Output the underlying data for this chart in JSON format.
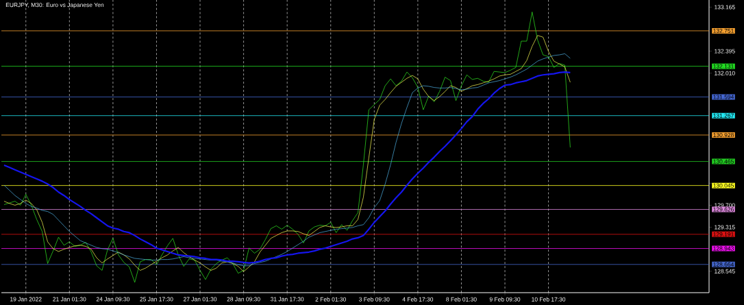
{
  "chart_data": {
    "type": "line",
    "title": "EURJPY, M30:  Euro vs Japanese Yen",
    "categories": [
      null,
      null,
      null,
      null,
      "19 Jan 2022",
      null,
      null,
      null,
      null,
      null,
      null,
      null,
      "21 Jan 01:30",
      null,
      null,
      null,
      null,
      null,
      null,
      null,
      "24 Jan 09:30",
      null,
      null,
      null,
      null,
      null,
      null,
      null,
      "25 Jan 17:30",
      null,
      null,
      null,
      null,
      null,
      null,
      null,
      "27 Jan 01:30",
      null,
      null,
      null,
      null,
      null,
      null,
      null,
      "28 Jan 09:30",
      null,
      null,
      null,
      null,
      null,
      null,
      null,
      "31 Jan 17:30",
      null,
      null,
      null,
      null,
      null,
      null,
      null,
      "2 Feb 01:30",
      null,
      null,
      null,
      null,
      null,
      null,
      null,
      "3 Feb 09:30",
      null,
      null,
      null,
      null,
      null,
      null,
      null,
      "4 Feb 17:30",
      null,
      null,
      null,
      null,
      null,
      null,
      null,
      "8 Feb 01:30",
      null,
      null,
      null,
      null,
      null,
      null,
      null,
      "9 Feb 09:30",
      null,
      null,
      null,
      null,
      null,
      null,
      null,
      "10 Feb 17:30",
      null,
      null,
      null,
      null,
      null,
      null,
      null,
      null,
      null,
      null,
      null,
      null,
      null,
      null,
      null,
      null,
      null,
      null,
      null,
      null,
      null,
      null,
      null,
      null,
      null,
      null,
      null,
      null,
      null
    ],
    "ylim": [
      128.17,
      133.29
    ],
    "yticks": [
      133.165,
      132.395,
      {
        "value": 132.01,
        "label": "132.010"
      },
      {
        "value": 130.855,
        "label": null
      },
      {
        "value": 130.085,
        "label": null
      },
      {
        "value": 129.7,
        "label": "129.700"
      },
      129.315,
      128.545
    ],
    "grid": "x",
    "marker": "none",
    "line_style": "solid",
    "series": [
      {
        "color": "#33ee22",
        "values": [
          129.71,
          129.74,
          129.77,
          129.7,
          129.89,
          129.7,
          129.45,
          129.24,
          128.68,
          128.9,
          129.14,
          129.0,
          129.06,
          128.98,
          129.0,
          129.05,
          128.88,
          128.64,
          128.56,
          128.92,
          129.12,
          128.83,
          128.7,
          128.62,
          128.35,
          128.71,
          128.75,
          128.75,
          128.66,
          128.83,
          128.99,
          129.12,
          128.83,
          128.63,
          128.76,
          128.74,
          128.56,
          128.4,
          128.58,
          128.68,
          128.74,
          128.78,
          128.68,
          128.51,
          128.56,
          128.95,
          128.86,
          128.93,
          129.1,
          129.29,
          129.34,
          129.28,
          129.35,
          129.28,
          129.19,
          129.04,
          129.25,
          129.32,
          129.35,
          129.34,
          129.4,
          129.22,
          129.36,
          129.26,
          129.43,
          129.57,
          130.41,
          131.37,
          131.46,
          131.55,
          131.79,
          131.91,
          131.79,
          131.87,
          132.03,
          131.93,
          131.76,
          131.37,
          131.61,
          131.51,
          131.69,
          131.94,
          131.88,
          131.53,
          131.79,
          131.98,
          131.9,
          131.92,
          131.87,
          131.85,
          132.04,
          132.03,
          132.02,
          132.06,
          132.11,
          132.57,
          132.57,
          133.08,
          132.59,
          132.33,
          132.3,
          132.11,
          132.18,
          132.15,
          130.71,
          null,
          null,
          null,
          null,
          null,
          null,
          null,
          null,
          null,
          null,
          null,
          null,
          null,
          null,
          null,
          null,
          null,
          null,
          null,
          null,
          null,
          null,
          null,
          null,
          null
        ]
      },
      {
        "color": "#ffff55",
        "values": [
          129.77,
          129.73,
          129.7,
          129.73,
          129.79,
          129.73,
          129.62,
          129.4,
          129.06,
          128.94,
          128.89,
          128.93,
          128.96,
          128.99,
          129.0,
          128.98,
          128.93,
          128.78,
          128.69,
          128.76,
          128.82,
          128.88,
          128.83,
          128.76,
          128.65,
          128.56,
          128.6,
          128.66,
          128.72,
          128.78,
          128.83,
          128.9,
          128.96,
          128.87,
          128.8,
          128.74,
          128.69,
          128.62,
          128.56,
          128.6,
          128.69,
          128.71,
          128.68,
          128.63,
          128.54,
          128.62,
          128.71,
          128.88,
          129.0,
          129.12,
          129.17,
          129.22,
          129.25,
          129.25,
          129.24,
          129.2,
          129.17,
          129.24,
          129.31,
          129.34,
          129.32,
          129.31,
          129.32,
          129.34,
          129.34,
          129.45,
          129.84,
          130.53,
          131.2,
          131.45,
          131.55,
          131.67,
          131.78,
          131.85,
          131.92,
          131.97,
          131.91,
          131.73,
          131.6,
          131.53,
          131.6,
          131.69,
          131.79,
          131.76,
          131.69,
          131.74,
          131.79,
          131.81,
          131.84,
          131.87,
          131.91,
          131.96,
          131.98,
          131.99,
          132.04,
          132.09,
          132.23,
          132.48,
          132.67,
          132.64,
          132.39,
          132.22,
          132.17,
          132.12,
          131.85,
          null,
          null,
          null,
          null,
          null,
          null,
          null,
          null,
          null,
          null,
          null,
          null,
          null,
          null,
          null,
          null,
          null,
          null,
          null,
          null,
          null,
          null,
          null,
          null,
          null
        ]
      },
      {
        "color": "#4fb3e6",
        "values": [
          130.05,
          129.96,
          129.87,
          129.8,
          129.73,
          129.68,
          129.65,
          129.61,
          129.59,
          129.54,
          129.44,
          129.34,
          129.24,
          129.16,
          129.08,
          129.04,
          129.0,
          128.96,
          128.94,
          128.93,
          128.9,
          128.87,
          128.83,
          128.8,
          128.77,
          128.76,
          128.75,
          128.74,
          128.74,
          128.75,
          128.75,
          128.76,
          128.78,
          128.8,
          128.78,
          128.77,
          128.76,
          128.75,
          128.74,
          128.74,
          128.72,
          128.71,
          128.69,
          128.66,
          128.64,
          128.64,
          128.68,
          128.7,
          128.72,
          128.76,
          128.8,
          128.84,
          128.89,
          128.95,
          129.01,
          129.07,
          129.14,
          129.18,
          129.22,
          129.24,
          129.26,
          129.28,
          129.29,
          129.3,
          129.31,
          129.34,
          129.36,
          129.48,
          129.66,
          129.78,
          130.07,
          130.41,
          130.8,
          131.13,
          131.41,
          131.67,
          131.75,
          131.79,
          131.78,
          131.76,
          131.75,
          131.75,
          131.76,
          131.74,
          131.72,
          131.73,
          131.75,
          131.76,
          131.8,
          131.84,
          131.86,
          131.88,
          131.91,
          131.94,
          131.98,
          132.03,
          132.08,
          132.15,
          132.22,
          132.26,
          132.29,
          132.32,
          132.33,
          132.35,
          132.27,
          null,
          null,
          null,
          null,
          null,
          null,
          null,
          null,
          null,
          null,
          null,
          null,
          null,
          null,
          null,
          null,
          null,
          null,
          null,
          null,
          null,
          null,
          null,
          null,
          null
        ]
      },
      {
        "color": "#1515ee",
        "values": [
          130.4,
          130.36,
          130.32,
          130.28,
          130.24,
          130.2,
          130.16,
          130.12,
          130.07,
          130.01,
          129.93,
          129.87,
          129.8,
          129.74,
          129.68,
          129.61,
          129.55,
          129.48,
          129.41,
          129.34,
          129.3,
          129.28,
          129.24,
          129.22,
          129.17,
          129.11,
          129.06,
          129.01,
          128.95,
          128.92,
          128.89,
          128.86,
          128.83,
          128.82,
          128.81,
          128.8,
          128.78,
          128.77,
          128.75,
          128.75,
          128.74,
          128.72,
          128.72,
          128.71,
          128.7,
          128.69,
          128.7,
          128.72,
          128.75,
          128.77,
          128.78,
          128.81,
          128.83,
          128.84,
          128.86,
          128.87,
          128.88,
          128.9,
          128.93,
          128.95,
          128.98,
          129.01,
          129.04,
          129.07,
          129.11,
          129.13,
          129.17,
          129.28,
          129.4,
          129.5,
          129.6,
          129.72,
          129.83,
          129.93,
          130.05,
          130.16,
          130.26,
          130.35,
          130.45,
          130.54,
          130.64,
          130.73,
          130.83,
          130.93,
          131.04,
          131.16,
          131.25,
          131.38,
          131.48,
          131.56,
          131.66,
          131.74,
          131.8,
          131.81,
          131.84,
          131.86,
          131.88,
          131.92,
          131.96,
          131.98,
          131.99,
          132.0,
          132.02,
          132.03,
          132.02,
          null,
          null,
          null,
          null,
          null,
          null,
          null,
          null,
          null,
          null,
          null,
          null,
          null,
          null,
          null,
          null,
          null,
          null,
          null,
          null,
          null,
          null,
          null,
          null,
          null
        ]
      }
    ],
    "ref_lines": [
      {
        "axis": "y",
        "value": 132.751,
        "label": "132.751",
        "color": "#f5a030"
      },
      {
        "axis": "y",
        "value": 132.131,
        "label": "132.131",
        "color": "#22dd22"
      },
      {
        "axis": "y",
        "value": 131.594,
        "label": "131.594",
        "color": "#4466d0"
      },
      {
        "axis": "y",
        "value": 131.267,
        "label": "131.267",
        "color": "#22e6f0"
      },
      {
        "axis": "y",
        "value": 130.928,
        "label": "130.928",
        "color": "#f5a030"
      },
      {
        "axis": "y",
        "value": 130.465,
        "label": "130.465",
        "color": "#22cc22"
      },
      {
        "axis": "y",
        "value": 130.045,
        "label": "130.045",
        "color": "#ffff22"
      },
      {
        "axis": "y",
        "value": 129.626,
        "label": "129.626",
        "color": "#dd88dd"
      },
      {
        "axis": "y",
        "value": 129.191,
        "label": "129.191",
        "color": "#dd1111"
      },
      {
        "axis": "y",
        "value": 128.943,
        "label": "128.943",
        "color": "#ee11ee"
      },
      {
        "axis": "y",
        "value": 128.664,
        "label": "128.664",
        "color": "#4466cc"
      }
    ]
  }
}
